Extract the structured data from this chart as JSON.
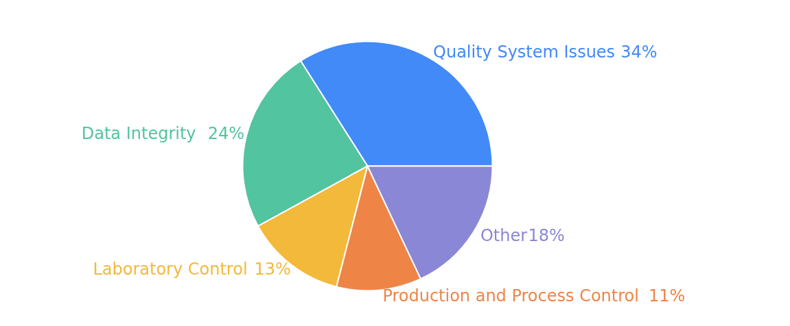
{
  "chart_data": {
    "type": "pie",
    "categories": [
      "Quality System Issues",
      "Data Integrity",
      "Laboratory Control",
      "Production and Process Control",
      "Other"
    ],
    "values": [
      34,
      24,
      13,
      11,
      18
    ],
    "colors": [
      "#418af7",
      "#52c49f",
      "#f2b93b",
      "#ee8547",
      "#8a87d6"
    ],
    "value_labels": [
      "34%",
      "24%",
      "13%",
      "11%",
      "18%"
    ]
  }
}
